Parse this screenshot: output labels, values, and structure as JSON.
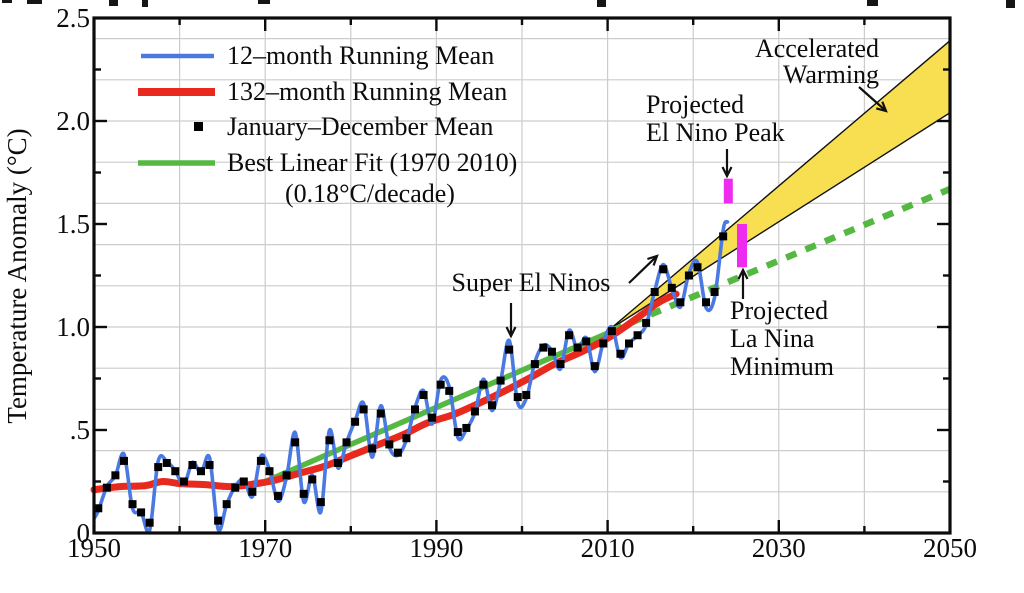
{
  "axes": {
    "y_title": "Temperature Anomaly (°C)",
    "y_tick_labels": [
      "2.5",
      "2.0",
      "1.5",
      "1.0",
      ".5",
      "0"
    ],
    "y_tick_values": [
      2.5,
      2.0,
      1.5,
      1.0,
      0.5,
      0
    ],
    "x_tick_labels": [
      "1950",
      "1970",
      "1990",
      "2010",
      "2030",
      "2050"
    ],
    "x_tick_values": [
      1950,
      1970,
      1990,
      2010,
      2030,
      2050
    ],
    "x_minor_ticks": [
      1960,
      1980,
      2000,
      2020,
      2040
    ],
    "y_minor_ticks": [
      0.25,
      0.75,
      1.25,
      1.75,
      2.25
    ]
  },
  "legend": {
    "items": [
      {
        "label": "12–month Running Mean",
        "marker": "line",
        "color": "#4a79e2"
      },
      {
        "label": "132–month Running Mean",
        "marker": "line",
        "color": "#e82a1e"
      },
      {
        "label": "January–December Mean",
        "marker": "square",
        "color": "#000000"
      },
      {
        "label": "Best Linear Fit (1970  2010)",
        "marker": "line",
        "color": "#55b843"
      },
      {
        "label": "(0.18°C/decade)",
        "marker": "none",
        "color": "#000000"
      }
    ]
  },
  "annotations": {
    "accelerated_warming_1": "Accelerated",
    "accelerated_warming_2": "Warming",
    "projected_el_nino_1": "Projected",
    "projected_el_nino_2": "El Nino Peak",
    "super_el_ninos": "Super El Ninos",
    "projected_la_nina_1": "Projected",
    "projected_la_nina_2": "La Nina",
    "projected_la_nina_3": "Minimum"
  },
  "colors": {
    "blue_12mo": "#4a79e2",
    "red_132mo": "#e82a1e",
    "green_fit": "#55b843",
    "yellow_fan": "#f8df52",
    "magenta_bar": "#ee2bee",
    "grid": "#cccccc",
    "frame": "#0c0c0c"
  },
  "chart_data": {
    "type": "line",
    "xlabel": "",
    "ylabel": "Temperature Anomaly (°C)",
    "xlim": [
      1950,
      2050
    ],
    "ylim": [
      0,
      2.5
    ],
    "x_major_ticks": [
      1950,
      1970,
      1990,
      2010,
      2030,
      2050
    ],
    "y_major_ticks": [
      0,
      0.5,
      1.0,
      1.5,
      2.0,
      2.5
    ],
    "grid": {
      "x_step_years": 10,
      "y_step_degc": 0.2,
      "shown": true
    },
    "legend_position": "top-left",
    "annual_mean": {
      "name": "January–December Mean",
      "style": "black-squares",
      "plotted_at_midyear": true,
      "start_year": 1950,
      "values": [
        0.12,
        0.22,
        0.28,
        0.35,
        0.14,
        0.1,
        0.05,
        0.32,
        0.34,
        0.3,
        0.25,
        0.33,
        0.3,
        0.33,
        0.06,
        0.14,
        0.22,
        0.25,
        0.2,
        0.35,
        0.3,
        0.18,
        0.28,
        0.44,
        0.19,
        0.26,
        0.15,
        0.45,
        0.34,
        0.44,
        0.54,
        0.6,
        0.41,
        0.58,
        0.43,
        0.39,
        0.46,
        0.6,
        0.67,
        0.56,
        0.72,
        0.69,
        0.49,
        0.51,
        0.59,
        0.72,
        0.62,
        0.74,
        0.89,
        0.66,
        0.67,
        0.82,
        0.9,
        0.88,
        0.82,
        0.96,
        0.9,
        0.93,
        0.81,
        0.92,
        0.98,
        0.87,
        0.92,
        0.96,
        1.02,
        1.17,
        1.28,
        1.19,
        1.12,
        1.25,
        1.29,
        1.12,
        1.17,
        1.44
      ]
    },
    "running_mean_12mo": {
      "name": "12–month Running Mean",
      "style": "blue-line",
      "derived_from": "annual_mean spline with amplified extremes",
      "amplification": 0.35,
      "start_point": [
        1950.0,
        0.07
      ],
      "end_point": [
        2024.0,
        1.51
      ]
    },
    "running_mean_132mo": {
      "name": "132–month Running Mean",
      "style": "red-line",
      "points": [
        [
          1950,
          0.21
        ],
        [
          1953,
          0.225
        ],
        [
          1956,
          0.23
        ],
        [
          1958,
          0.25
        ],
        [
          1960,
          0.24
        ],
        [
          1963,
          0.235
        ],
        [
          1966,
          0.225
        ],
        [
          1969,
          0.24
        ],
        [
          1971,
          0.255
        ],
        [
          1974,
          0.29
        ],
        [
          1977,
          0.325
        ],
        [
          1980,
          0.375
        ],
        [
          1983,
          0.425
        ],
        [
          1986,
          0.475
        ],
        [
          1989,
          0.535
        ],
        [
          1992,
          0.575
        ],
        [
          1995,
          0.63
        ],
        [
          1998,
          0.69
        ],
        [
          2001,
          0.755
        ],
        [
          2004,
          0.825
        ],
        [
          2007,
          0.88
        ],
        [
          2010,
          0.945
        ],
        [
          2012,
          1.0
        ],
        [
          2014,
          1.06
        ],
        [
          2016,
          1.12
        ],
        [
          2018,
          1.16
        ]
      ]
    },
    "best_fit": {
      "name": "Best Linear Fit (1970–2010)",
      "rate_c_per_decade": 0.18,
      "solid_start": [
        1970,
        0.25
      ],
      "solid_end": [
        2010,
        0.97
      ],
      "dashed_start": [
        2010.5,
        0.982
      ],
      "dashed_end": [
        2050,
        1.67
      ]
    },
    "projections": {
      "accelerated_warming_fan": {
        "apex": [
          2010.3,
          0.99
        ],
        "end_year": 2050,
        "end_range": [
          2.04,
          2.39
        ]
      },
      "el_nino_peak_bar": {
        "year": 2024.1,
        "range": [
          1.6,
          1.72
        ]
      },
      "la_nina_minimum_bar": {
        "year": 2025.7,
        "range": [
          1.29,
          1.5
        ]
      }
    }
  }
}
